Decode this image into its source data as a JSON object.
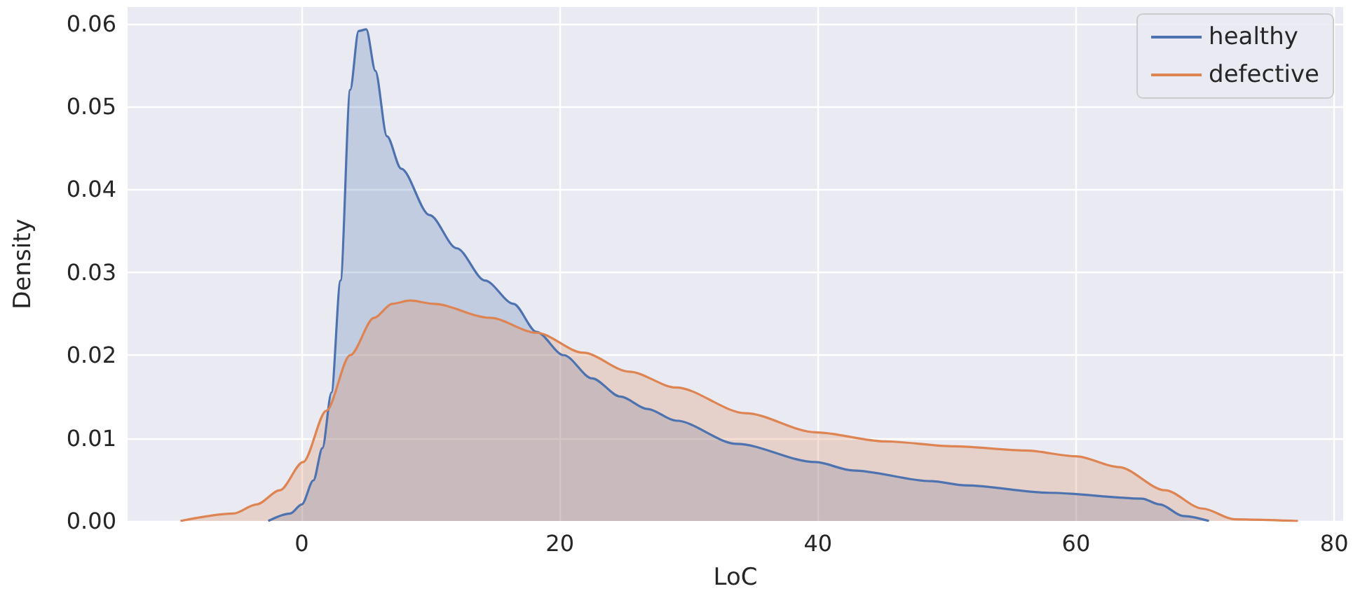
{
  "chart_data": {
    "type": "area",
    "xlabel": "LoC",
    "ylabel": "Density",
    "xlim": [
      -13.5,
      80.7
    ],
    "ylim": [
      0,
      0.062
    ],
    "xticks": [
      0,
      20,
      40,
      60,
      80
    ],
    "yticks": [
      {
        "value": 0,
        "label": "0.00"
      },
      {
        "value": 0.01,
        "label": "0.01"
      },
      {
        "value": 0.02,
        "label": "0.02"
      },
      {
        "value": 0.03,
        "label": "0.03"
      },
      {
        "value": 0.04,
        "label": "0.04"
      },
      {
        "value": 0.05,
        "label": "0.05"
      },
      {
        "value": 0.06,
        "label": "0.06"
      }
    ],
    "grid": true,
    "legend": "top right",
    "marker": "none",
    "series": [
      {
        "name": "healthy",
        "color": "#4c72b0",
        "x": [
          -2.6,
          -0.9,
          0,
          0.9,
          1.6,
          2.3,
          3.0,
          3.75,
          4.4,
          5.0,
          5.7,
          6.6,
          7.7,
          9.9,
          12.0,
          14.2,
          16.4,
          18.2,
          20.3,
          22.5,
          24.7,
          26.8,
          29.0,
          33.7,
          39.8,
          42.7,
          48.8,
          51.4,
          57.9,
          65.1,
          66.5,
          68.3,
          70.3
        ],
        "values": [
          0,
          0.0009,
          0.002,
          0.0049,
          0.0088,
          0.0155,
          0.029,
          0.052,
          0.0591,
          0.0593,
          0.0543,
          0.0464,
          0.0425,
          0.0369,
          0.0329,
          0.029,
          0.0262,
          0.0228,
          0.02,
          0.0172,
          0.015,
          0.0135,
          0.0121,
          0.0093,
          0.0071,
          0.0061,
          0.0048,
          0.0043,
          0.0034,
          0.0027,
          0.002,
          0.0006,
          0
        ]
      },
      {
        "name": "defective",
        "color": "#dd8452",
        "x": [
          -9.4,
          -5.3,
          -3.5,
          -1.7,
          0.1,
          1.9,
          3.75,
          5.6,
          7.0,
          8.4,
          10.2,
          14.6,
          18.2,
          21.8,
          25.4,
          29.0,
          34.4,
          39.8,
          45.2,
          50.6,
          56.1,
          60.0,
          63.3,
          66.9,
          69.8,
          72.3,
          77.2
        ],
        "values": [
          0,
          0.0009,
          0.002,
          0.0037,
          0.0071,
          0.0133,
          0.02,
          0.0245,
          0.0262,
          0.0266,
          0.0262,
          0.0245,
          0.0227,
          0.0203,
          0.018,
          0.0161,
          0.013,
          0.0107,
          0.0096,
          0.009,
          0.0085,
          0.0078,
          0.0065,
          0.0037,
          0.0015,
          0.0002,
          0
        ]
      }
    ]
  }
}
